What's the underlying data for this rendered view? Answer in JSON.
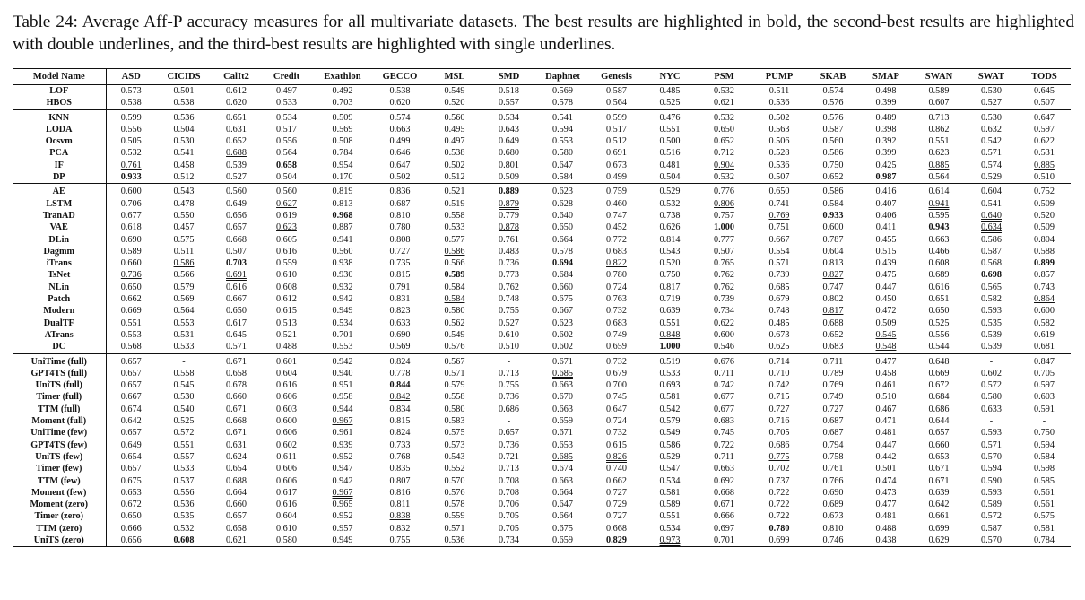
{
  "caption": "Table 24: Average Aff-P accuracy measures for all multivariate datasets. The best results are highlighted in bold, the second-best results are highlighted with double underlines, and the third-best results are highlighted with single underlines.",
  "columns": [
    "Model Name",
    "ASD",
    "CICIDS",
    "CalIt2",
    "Credit",
    "Exathlon",
    "GECCO",
    "MSL",
    "SMD",
    "Daphnet",
    "Genesis",
    "NYC",
    "PSM",
    "PUMP",
    "SKAB",
    "SMAP",
    "SWAN",
    "SWAT",
    "TODS"
  ],
  "groups": [
    [
      [
        "LOF",
        "0.573",
        "0.501",
        "0.612",
        "0.497",
        "0.492",
        "0.538",
        "0.549",
        "0.518",
        "0.569",
        "0.587",
        "0.485",
        "0.532",
        "0.511",
        "0.574",
        "0.498",
        "0.589",
        "0.530",
        "0.645"
      ],
      [
        "HBOS",
        "0.538",
        "0.538",
        "0.620",
        "0.533",
        "0.703",
        "0.620",
        "0.520",
        "0.557",
        "0.578",
        "0.564",
        "0.525",
        "0.621",
        "0.536",
        "0.576",
        "0.399",
        "0.607",
        "0.527",
        "0.507"
      ]
    ],
    [
      [
        "KNN",
        "0.599",
        "0.536",
        "0.651",
        "0.534",
        "0.509",
        "0.574",
        "0.560",
        "0.534",
        "0.541",
        "0.599",
        "0.476",
        "0.532",
        "0.502",
        "0.576",
        "0.489",
        "0.713",
        "0.530",
        "0.647"
      ],
      [
        "LODA",
        "0.556",
        "0.504",
        "0.631",
        "0.517",
        "0.569",
        "0.663",
        "0.495",
        "0.643",
        "0.594",
        "0.517",
        "0.551",
        "0.650",
        "0.563",
        "0.587",
        "0.398",
        "0.862",
        "0.632",
        "0.597"
      ],
      [
        "Ocsvm",
        "0.505",
        "0.530",
        "0.652",
        "0.556",
        "0.508",
        "0.499",
        "0.497",
        "0.649",
        "0.553",
        "0.512",
        "0.500",
        "0.652",
        "0.506",
        "0.560",
        "0.392",
        "0.551",
        "0.542",
        "0.622"
      ],
      [
        "PCA",
        "0.532",
        "0.541",
        "~0.688",
        "0.564",
        "0.784",
        "0.646",
        "0.538",
        "0.680",
        "0.580",
        "0.691",
        "0.516",
        "0.712",
        "0.528",
        "0.586",
        "0.399",
        "0.623",
        "0.571",
        "0.531"
      ],
      [
        "IF",
        "~0.761",
        "0.458",
        "0.539",
        "*0.658",
        "0.954",
        "0.647",
        "0.502",
        "0.801",
        "0.647",
        "0.673",
        "0.481",
        "~0.904",
        "0.536",
        "0.750",
        "0.425",
        "~0.885",
        "0.574",
        "~0.885"
      ],
      [
        "DP",
        "*0.933",
        "0.512",
        "0.527",
        "0.504",
        "0.170",
        "0.502",
        "0.512",
        "0.509",
        "0.584",
        "0.499",
        "0.504",
        "0.532",
        "0.507",
        "0.652",
        "*0.987",
        "0.564",
        "0.529",
        "0.510"
      ]
    ],
    [
      [
        "AE",
        "0.600",
        "0.543",
        "0.560",
        "0.560",
        "0.819",
        "0.836",
        "0.521",
        "*0.889",
        "0.623",
        "0.759",
        "0.529",
        "0.776",
        "0.650",
        "0.586",
        "0.416",
        "0.614",
        "0.604",
        "0.752"
      ],
      [
        "LSTM",
        "0.706",
        "0.478",
        "0.649",
        "~0.627",
        "0.813",
        "0.687",
        "0.519",
        "=0.879",
        "0.628",
        "0.460",
        "0.532",
        "~0.806",
        "0.741",
        "0.584",
        "0.407",
        "=0.941",
        "0.541",
        "0.509"
      ],
      [
        "TranAD",
        "0.677",
        "0.550",
        "0.656",
        "0.619",
        "*0.968",
        "0.810",
        "0.558",
        "0.779",
        "0.640",
        "0.747",
        "0.738",
        "0.757",
        "~0.769",
        "*0.933",
        "0.406",
        "0.595",
        "=0.640",
        "0.520"
      ],
      [
        "VAE",
        "0.618",
        "0.457",
        "0.657",
        "~0.623",
        "0.887",
        "0.780",
        "0.533",
        "~0.878",
        "0.650",
        "0.452",
        "0.626",
        "*1.000",
        "0.751",
        "0.600",
        "0.411",
        "*0.943",
        "=0.634",
        "0.509"
      ],
      [
        "DLin",
        "0.690",
        "0.575",
        "0.668",
        "0.605",
        "0.941",
        "0.808",
        "0.577",
        "0.761",
        "0.664",
        "0.772",
        "0.814",
        "0.777",
        "0.667",
        "0.787",
        "0.455",
        "0.663",
        "0.586",
        "0.804"
      ],
      [
        "Dagmm",
        "0.589",
        "0.511",
        "0.507",
        "0.616",
        "0.560",
        "0.727",
        "~0.586",
        "0.483",
        "0.578",
        "0.683",
        "0.543",
        "0.507",
        "0.554",
        "0.604",
        "0.515",
        "0.466",
        "0.587",
        "0.588"
      ],
      [
        "iTrans",
        "0.660",
        "~0.586",
        "*0.703",
        "0.559",
        "0.938",
        "0.735",
        "0.566",
        "0.736",
        "*0.694",
        "~0.822",
        "0.520",
        "0.765",
        "0.571",
        "0.813",
        "0.439",
        "0.608",
        "0.568",
        "*0.899"
      ],
      [
        "TsNet",
        "~0.736",
        "0.566",
        "=0.691",
        "0.610",
        "0.930",
        "0.815",
        "*0.589",
        "0.773",
        "0.684",
        "0.780",
        "0.750",
        "0.762",
        "0.739",
        "~0.827",
        "0.475",
        "0.689",
        "*0.698",
        "0.857"
      ],
      [
        "NLin",
        "0.650",
        "~0.579",
        "0.616",
        "0.608",
        "0.932",
        "0.791",
        "0.584",
        "0.762",
        "0.660",
        "0.724",
        "0.817",
        "0.762",
        "0.685",
        "0.747",
        "0.447",
        "0.616",
        "0.565",
        "0.743"
      ],
      [
        "Patch",
        "0.662",
        "0.569",
        "0.667",
        "0.612",
        "0.942",
        "0.831",
        "~0.584",
        "0.748",
        "0.675",
        "0.763",
        "0.719",
        "0.739",
        "0.679",
        "0.802",
        "0.450",
        "0.651",
        "0.582",
        "~0.864"
      ],
      [
        "Modern",
        "0.669",
        "0.564",
        "0.650",
        "0.615",
        "0.949",
        "0.823",
        "0.580",
        "0.755",
        "0.667",
        "0.732",
        "0.639",
        "0.734",
        "0.748",
        "~0.817",
        "0.472",
        "0.650",
        "0.593",
        "0.600"
      ],
      [
        "DualTF",
        "0.551",
        "0.553",
        "0.617",
        "0.513",
        "0.534",
        "0.633",
        "0.562",
        "0.527",
        "0.623",
        "0.683",
        "0.551",
        "0.622",
        "0.485",
        "0.688",
        "0.509",
        "0.525",
        "0.535",
        "0.582"
      ],
      [
        "ATrans",
        "0.553",
        "0.531",
        "0.645",
        "0.521",
        "0.701",
        "0.690",
        "0.549",
        "0.610",
        "0.602",
        "0.749",
        "~0.848",
        "0.600",
        "0.673",
        "0.652",
        "~0.545",
        "0.556",
        "0.539",
        "0.619"
      ],
      [
        "DC",
        "0.568",
        "0.533",
        "0.571",
        "0.488",
        "0.553",
        "0.569",
        "0.576",
        "0.510",
        "0.602",
        "0.659",
        "*1.000",
        "0.546",
        "0.625",
        "0.683",
        "=0.548",
        "0.544",
        "0.539",
        "0.681"
      ]
    ],
    [
      [
        "UniTime (full)",
        "0.657",
        "-",
        "0.671",
        "0.601",
        "0.942",
        "0.824",
        "0.567",
        "-",
        "0.671",
        "0.732",
        "0.519",
        "0.676",
        "0.714",
        "0.711",
        "0.477",
        "0.648",
        "-",
        "0.847"
      ],
      [
        "GPT4TS (full)",
        "0.657",
        "0.558",
        "0.658",
        "0.604",
        "0.940",
        "0.778",
        "0.571",
        "0.713",
        "=0.685",
        "0.679",
        "0.533",
        "0.711",
        "0.710",
        "0.789",
        "0.458",
        "0.669",
        "0.602",
        "0.705"
      ],
      [
        "UniTS (full)",
        "0.657",
        "0.545",
        "0.678",
        "0.616",
        "0.951",
        "*0.844",
        "0.579",
        "0.755",
        "0.663",
        "0.700",
        "0.693",
        "0.742",
        "0.742",
        "0.769",
        "0.461",
        "0.672",
        "0.572",
        "0.597"
      ],
      [
        "Timer (full)",
        "0.667",
        "0.530",
        "0.660",
        "0.606",
        "0.958",
        "~0.842",
        "0.558",
        "0.736",
        "0.670",
        "0.745",
        "0.581",
        "0.677",
        "0.715",
        "0.749",
        "0.510",
        "0.684",
        "0.580",
        "0.603"
      ],
      [
        "TTM (full)",
        "0.674",
        "0.540",
        "0.671",
        "0.603",
        "0.944",
        "0.834",
        "0.580",
        "0.686",
        "0.663",
        "0.647",
        "0.542",
        "0.677",
        "0.727",
        "0.727",
        "0.467",
        "0.686",
        "0.633",
        "0.591"
      ],
      [
        "Moment (full)",
        "0.642",
        "0.525",
        "0.668",
        "0.600",
        "~0.967",
        "0.815",
        "0.583",
        "-",
        "0.659",
        "0.724",
        "0.579",
        "0.683",
        "0.716",
        "0.687",
        "0.471",
        "0.644",
        "-",
        "-"
      ],
      [
        "UniTime (few)",
        "0.657",
        "0.572",
        "0.671",
        "0.606",
        "0.961",
        "0.824",
        "0.575",
        "0.657",
        "0.671",
        "0.732",
        "0.549",
        "0.745",
        "0.705",
        "0.687",
        "0.481",
        "0.657",
        "0.593",
        "0.750"
      ],
      [
        "GPT4TS (few)",
        "0.649",
        "0.551",
        "0.631",
        "0.602",
        "0.939",
        "0.733",
        "0.573",
        "0.736",
        "0.653",
        "0.615",
        "0.586",
        "0.722",
        "0.686",
        "0.794",
        "0.447",
        "0.660",
        "0.571",
        "0.594"
      ],
      [
        "UniTS (few)",
        "0.654",
        "0.557",
        "0.624",
        "0.611",
        "0.952",
        "0.768",
        "0.543",
        "0.721",
        "~0.685",
        "=0.826",
        "0.529",
        "0.711",
        "~0.775",
        "0.758",
        "0.442",
        "0.653",
        "0.570",
        "0.584"
      ],
      [
        "Timer (few)",
        "0.657",
        "0.533",
        "0.654",
        "0.606",
        "0.947",
        "0.835",
        "0.552",
        "0.713",
        "0.674",
        "0.740",
        "0.547",
        "0.663",
        "0.702",
        "0.761",
        "0.501",
        "0.671",
        "0.594",
        "0.598"
      ],
      [
        "TTM (few)",
        "0.675",
        "0.537",
        "0.688",
        "0.606",
        "0.942",
        "0.807",
        "0.570",
        "0.708",
        "0.663",
        "0.662",
        "0.534",
        "0.692",
        "0.737",
        "0.766",
        "0.474",
        "0.671",
        "0.590",
        "0.585"
      ],
      [
        "Moment (few)",
        "0.653",
        "0.556",
        "0.664",
        "0.617",
        "=0.967",
        "0.816",
        "0.576",
        "0.708",
        "0.664",
        "0.727",
        "0.581",
        "0.668",
        "0.722",
        "0.690",
        "0.473",
        "0.639",
        "0.593",
        "0.561"
      ],
      [
        "Moment (zero)",
        "0.672",
        "0.536",
        "0.660",
        "0.616",
        "0.965",
        "0.811",
        "0.578",
        "0.706",
        "0.647",
        "0.729",
        "0.589",
        "0.671",
        "0.722",
        "0.689",
        "0.477",
        "0.642",
        "0.589",
        "0.561"
      ],
      [
        "Timer (zero)",
        "0.650",
        "0.535",
        "0.657",
        "0.604",
        "0.952",
        "~0.838",
        "0.559",
        "0.705",
        "0.664",
        "0.727",
        "0.551",
        "0.666",
        "0.722",
        "0.673",
        "0.481",
        "0.661",
        "0.572",
        "0.575"
      ],
      [
        "TTM (zero)",
        "0.666",
        "0.532",
        "0.658",
        "0.610",
        "0.957",
        "0.832",
        "0.571",
        "0.705",
        "0.675",
        "0.668",
        "0.534",
        "0.697",
        "*0.780",
        "0.810",
        "0.488",
        "0.699",
        "0.587",
        "0.581"
      ],
      [
        "UniTS (zero)",
        "0.656",
        "*0.608",
        "0.621",
        "0.580",
        "0.949",
        "0.755",
        "0.536",
        "0.734",
        "0.659",
        "*0.829",
        "=0.973",
        "0.701",
        "0.699",
        "0.746",
        "0.438",
        "0.629",
        "0.570",
        "0.784"
      ]
    ]
  ]
}
